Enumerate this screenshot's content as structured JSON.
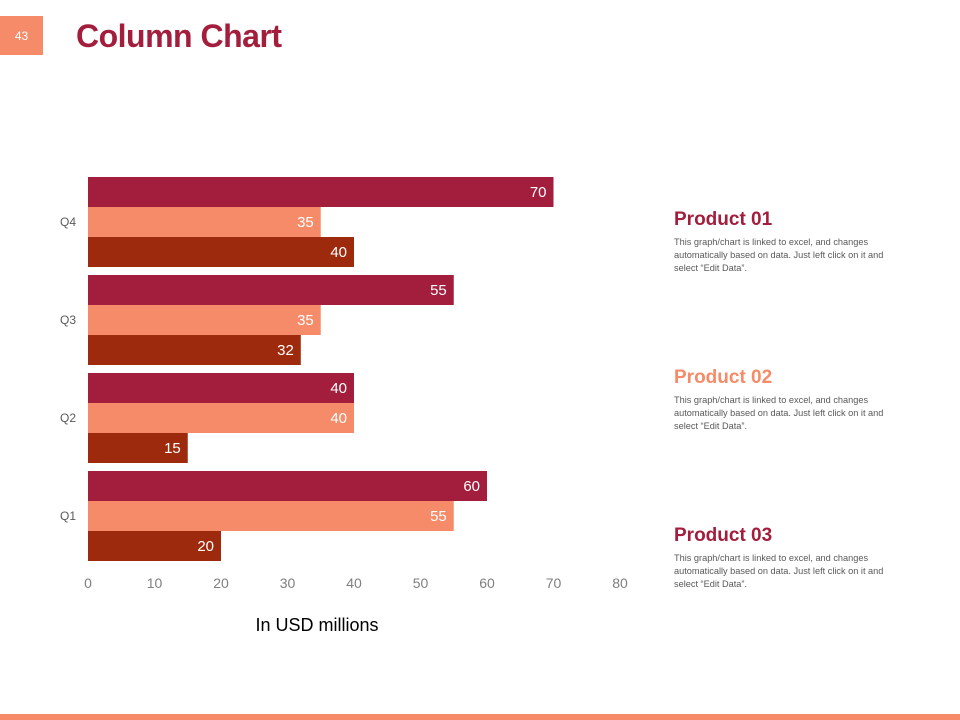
{
  "slide": {
    "page_number": "43",
    "title": "Column Chart"
  },
  "colors": {
    "product_01": "#a21e3c",
    "product_02": "#f58b68",
    "product_03": "#9e2a0d",
    "accent": "#f58b68"
  },
  "legend": [
    {
      "title": "Product 01",
      "description": "This graph/chart is linked to excel, and changes automatically based on data. Just left click on it and select “Edit Data”."
    },
    {
      "title": "Product 02",
      "description": "This graph/chart is linked to excel, and changes automatically based on data. Just left click on it and select “Edit Data”."
    },
    {
      "title": "Product 03",
      "description": "This graph/chart is linked to excel, and changes automatically based on data. Just left click on it and select “Edit Data”."
    }
  ],
  "chart_data": {
    "type": "bar",
    "orientation": "horizontal",
    "title": "Column Chart",
    "categories": [
      "Q1",
      "Q2",
      "Q3",
      "Q4"
    ],
    "series": [
      {
        "name": "Product 01",
        "values": [
          60,
          40,
          55,
          70
        ]
      },
      {
        "name": "Product 02",
        "values": [
          55,
          40,
          35,
          35
        ]
      },
      {
        "name": "Product 03",
        "values": [
          20,
          15,
          32,
          40
        ]
      }
    ],
    "xlabel": "In USD millions",
    "ylabel": "",
    "xlim": [
      0,
      80
    ],
    "xticks": [
      0,
      10,
      20,
      30,
      40,
      50,
      60,
      70,
      80
    ],
    "grid": false,
    "data_labels": true,
    "legend": "right"
  }
}
